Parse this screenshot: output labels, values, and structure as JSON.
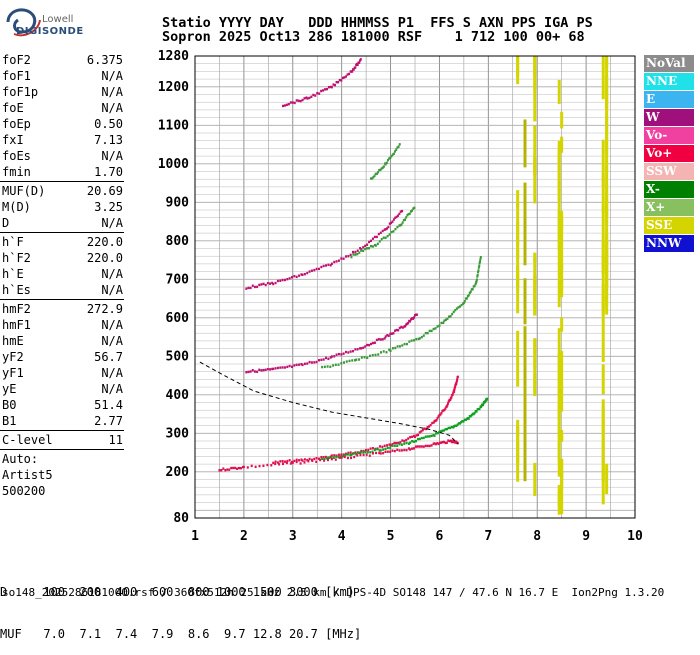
{
  "logo": {
    "top": "Lowell",
    "bottom": "DIGISONDE"
  },
  "header": {
    "line1": "Statio YYYY DAY   DDD HHMMSS P1  FFS S AXN PPS IGA PS",
    "line2": "Sopron 2025 Oct13 286 181000 RSF    1 712 100 00+ 68"
  },
  "params": {
    "group1": [
      {
        "label": "foF2",
        "value": "6.375"
      },
      {
        "label": "foF1",
        "value": "N/A"
      },
      {
        "label": "foF1p",
        "value": "N/A"
      },
      {
        "label": "foE",
        "value": "N/A"
      },
      {
        "label": "foEp",
        "value": "0.50"
      },
      {
        "label": "fxI",
        "value": "7.13"
      },
      {
        "label": "foEs",
        "value": "N/A"
      },
      {
        "label": "fmin",
        "value": "1.70"
      }
    ],
    "group2": [
      {
        "label": "MUF(D)",
        "value": "20.69"
      },
      {
        "label": "M(D)",
        "value": "3.25"
      },
      {
        "label": "D",
        "value": "N/A"
      }
    ],
    "group3": [
      {
        "label": "h`F",
        "value": "220.0"
      },
      {
        "label": "h`F2",
        "value": "220.0"
      },
      {
        "label": "h`E",
        "value": "N/A"
      },
      {
        "label": "h`Es",
        "value": "N/A"
      }
    ],
    "group4": [
      {
        "label": "hmF2",
        "value": "272.9"
      },
      {
        "label": "hmF1",
        "value": "N/A"
      },
      {
        "label": "hmE",
        "value": "N/A"
      },
      {
        "label": "yF2",
        "value": "56.7"
      },
      {
        "label": "yF1",
        "value": "N/A"
      },
      {
        "label": "yE",
        "value": "N/A"
      },
      {
        "label": "B0",
        "value": "51.4"
      },
      {
        "label": "B1",
        "value": "2.77"
      }
    ],
    "group5": [
      {
        "label": "C-level",
        "value": "11"
      }
    ],
    "auto": [
      "Auto:",
      "Artist5",
      "500200"
    ]
  },
  "legend": [
    {
      "label": "NoVal",
      "color": "#8c8c8c"
    },
    {
      "label": "NNE",
      "color": "#20e0e8"
    },
    {
      "label": "E",
      "color": "#3cb4f0"
    },
    {
      "label": "W",
      "color": "#a0107c"
    },
    {
      "label": "Vo-",
      "color": "#f040a0"
    },
    {
      "label": "Vo+",
      "color": "#f00040"
    },
    {
      "label": "SSW",
      "color": "#f4b4b4"
    },
    {
      "label": "X-",
      "color": "#008000"
    },
    {
      "label": "X+",
      "color": "#88c060"
    },
    {
      "label": "SSE",
      "color": "#d4d400"
    },
    {
      "label": "NNW",
      "color": "#1010d0"
    }
  ],
  "footer": {
    "line1": "D     100  200  400  600  800 1000 1500 3000 [km]",
    "line2": "MUF   7.0  7.1  7.4  7.9  8.6  9.7 12.8 20.7 [MHz]",
    "filename": "so148_2025286181000.rsf / 360fx512h 25 kHz 2.5 km / DPS-4D SO148 147 / 47.6 N 16.7 E  Ion2Png 1.3.20"
  },
  "chart_data": {
    "type": "scatter",
    "xlabel": "",
    "ylabel": "",
    "xlim": [
      1,
      10
    ],
    "ylim": [
      80,
      1280
    ],
    "xticks": [
      1,
      2,
      3,
      4,
      5,
      6,
      7,
      8,
      9,
      10
    ],
    "yticks": [
      80,
      200,
      300,
      400,
      500,
      600,
      700,
      800,
      900,
      1000,
      1100,
      1200,
      1280
    ],
    "grid": true,
    "series": [
      {
        "name": "Vo+",
        "color": "#e01050",
        "x": [
          2.6,
          3.2,
          3.8,
          4.4,
          5.0,
          5.5,
          5.9,
          6.15,
          6.3,
          6.38
        ],
        "y": [
          224,
          230,
          240,
          252,
          270,
          292,
          330,
          370,
          410,
          448
        ]
      },
      {
        "name": "X-",
        "color": "#10a020",
        "x": [
          3.6,
          4.2,
          4.8,
          5.4,
          5.9,
          6.3,
          6.6,
          6.85,
          6.98
        ],
        "y": [
          232,
          244,
          258,
          276,
          296,
          318,
          340,
          368,
          390
        ]
      },
      {
        "name": "Vo+",
        "color": "#e01050",
        "x": [
          1.5,
          2.0,
          3.0,
          4.0,
          4.8,
          5.4,
          5.9,
          6.25,
          6.38
        ],
        "y": [
          205,
          212,
          222,
          235,
          248,
          260,
          272,
          280,
          276
        ]
      },
      {
        "name": "Vo-",
        "color": "#c01070",
        "x": [
          2.05,
          2.6,
          3.2,
          3.8,
          4.4,
          4.9,
          5.3,
          5.55
        ],
        "y": [
          460,
          466,
          478,
          498,
          522,
          550,
          580,
          610
        ]
      },
      {
        "name": "X-",
        "color": "#3a9a3a",
        "x": [
          3.6,
          4.3,
          5.0,
          5.6,
          6.1,
          6.5,
          6.75,
          6.85
        ],
        "y": [
          470,
          490,
          516,
          548,
          590,
          640,
          690,
          760
        ]
      },
      {
        "name": "Vo-",
        "color": "#c01070",
        "x": [
          2.05,
          2.6,
          3.2,
          3.8,
          4.4,
          4.9,
          5.25
        ],
        "y": [
          678,
          690,
          712,
          740,
          780,
          830,
          880
        ]
      },
      {
        "name": "X-",
        "color": "#3a9a3a",
        "x": [
          4.2,
          4.7,
          5.2,
          5.5
        ],
        "y": [
          760,
          790,
          840,
          890
        ]
      },
      {
        "name": "W",
        "color": "#c01070",
        "x": [
          2.8,
          3.3,
          3.8,
          4.2,
          4.4
        ],
        "y": [
          1152,
          1170,
          1200,
          1240,
          1270
        ]
      },
      {
        "name": "X+",
        "color": "#3a9a3a",
        "x": [
          4.6,
          4.9,
          5.2
        ],
        "y": [
          960,
          1000,
          1050
        ]
      }
    ],
    "profile": {
      "x": [
        1.1,
        1.6,
        2.2,
        3.0,
        3.8,
        4.5,
        5.2,
        5.8,
        6.2,
        6.38
      ],
      "y": [
        485,
        450,
        410,
        380,
        355,
        340,
        325,
        310,
        295,
        273
      ]
    },
    "interference_bands": [
      {
        "x": 7.6,
        "color": "#d4d400"
      },
      {
        "x": 7.75,
        "color": "#b4b400"
      },
      {
        "x": 7.95,
        "color": "#d4d400"
      },
      {
        "x": 8.45,
        "color": "#d4d400"
      },
      {
        "x": 8.5,
        "color": "#d4d400"
      },
      {
        "x": 9.35,
        "color": "#d4d400"
      },
      {
        "x": 9.42,
        "color": "#d4d400"
      }
    ]
  }
}
